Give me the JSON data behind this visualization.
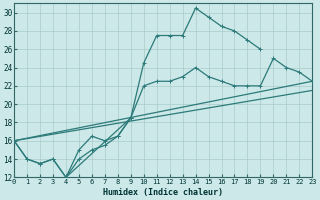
{
  "xlabel": "Humidex (Indice chaleur)",
  "bg_color": "#cce8e8",
  "grid_color": "#aacccc",
  "line_color": "#2d7a7a",
  "xlim": [
    0,
    23
  ],
  "ylim": [
    12,
    31
  ],
  "xticks": [
    0,
    1,
    2,
    3,
    4,
    5,
    6,
    7,
    8,
    9,
    10,
    11,
    12,
    13,
    14,
    15,
    16,
    17,
    18,
    19,
    20,
    21,
    22,
    23
  ],
  "yticks": [
    12,
    14,
    16,
    18,
    20,
    22,
    24,
    26,
    28,
    30
  ],
  "series": [
    {
      "x": [
        0,
        1,
        2,
        3,
        4,
        5,
        6,
        7,
        8,
        9,
        10,
        11,
        12,
        13,
        14,
        15,
        16,
        17,
        18,
        19
      ],
      "y": [
        16,
        14,
        13.5,
        14,
        12,
        15,
        16.5,
        16,
        16.5,
        18.5,
        24.5,
        27.5,
        27.5,
        27.5,
        30.5,
        29.5,
        28.5,
        28,
        27,
        26
      ]
    },
    {
      "x": [
        0,
        1,
        2,
        3,
        4,
        5,
        6,
        7,
        8,
        9
      ],
      "y": [
        16,
        14,
        13.5,
        14,
        12,
        14,
        15,
        15.5,
        16.5,
        18.5
      ]
    },
    {
      "x": [
        0,
        23
      ],
      "y": [
        16,
        22.5
      ]
    },
    {
      "x": [
        0,
        23
      ],
      "y": [
        16,
        21.5
      ]
    },
    {
      "x": [
        4,
        9,
        10,
        11,
        12,
        13,
        14,
        15,
        16,
        17,
        18,
        19,
        20,
        21,
        22,
        23
      ],
      "y": [
        12,
        18.5,
        22,
        22.5,
        22.5,
        23,
        24,
        23,
        22.5,
        22,
        22,
        22,
        25,
        24,
        23.5,
        22.5
      ]
    }
  ]
}
